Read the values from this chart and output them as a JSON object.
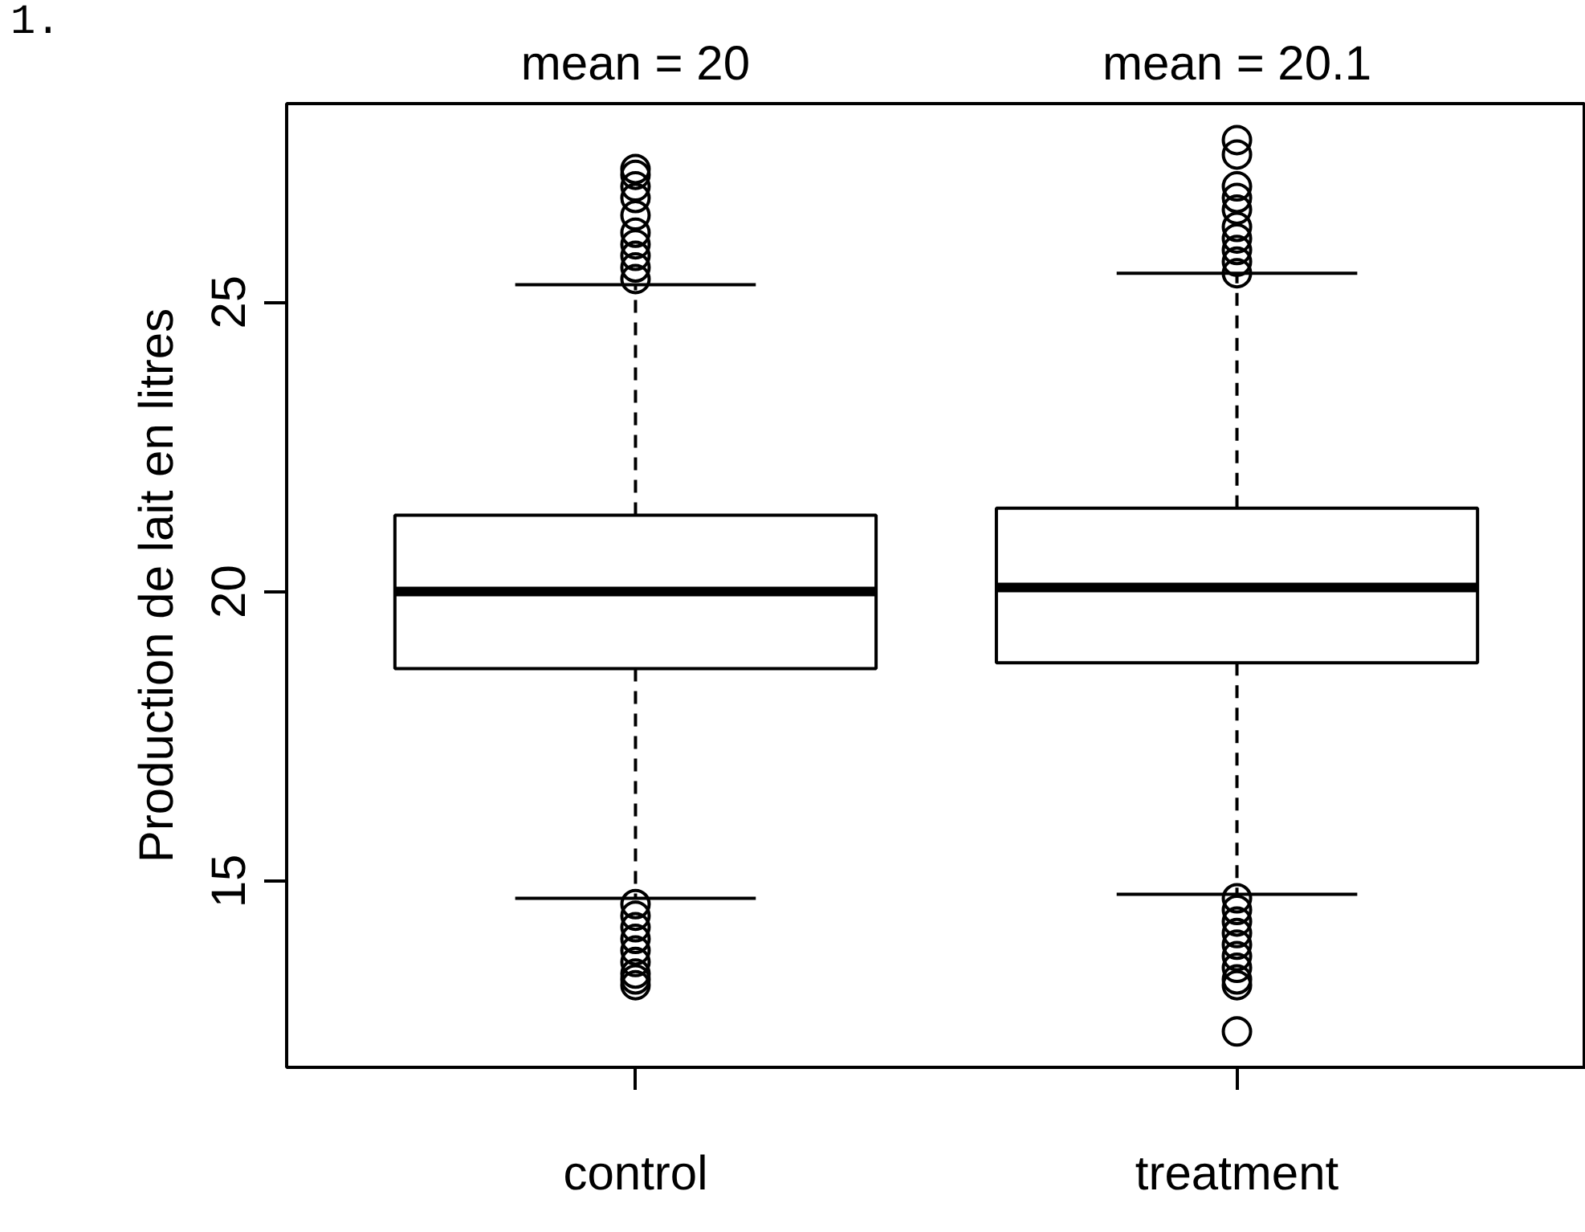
{
  "chart_data": {
    "type": "box",
    "ylabel": "Production de lait en litres",
    "categories": [
      "control",
      "treatment"
    ],
    "boxes": [
      {
        "low": 14.7,
        "q1": 18.67,
        "median": 20.0,
        "q3": 21.32,
        "high": 25.3,
        "outliers": [
          25.4,
          25.6,
          25.8,
          26.0,
          26.2,
          26.5,
          26.8,
          27.0,
          27.2,
          27.3,
          14.6,
          14.4,
          14.2,
          14.0,
          13.8,
          13.6,
          13.4,
          13.3,
          13.2
        ]
      },
      {
        "low": 14.77,
        "q1": 18.77,
        "median": 20.07,
        "q3": 21.44,
        "high": 25.5,
        "outliers": [
          25.5,
          25.7,
          25.9,
          26.1,
          26.3,
          26.6,
          26.8,
          27.0,
          27.55,
          27.8,
          14.7,
          14.5,
          14.3,
          14.1,
          13.9,
          13.7,
          13.5,
          13.3,
          13.2,
          12.4
        ]
      }
    ],
    "ylim": [
      11.78,
      28.43
    ],
    "yticks": [
      15,
      20,
      25
    ],
    "annotations": [
      "mean = 20",
      "mean = 20.1",
      "1."
    ],
    "grid": false
  }
}
